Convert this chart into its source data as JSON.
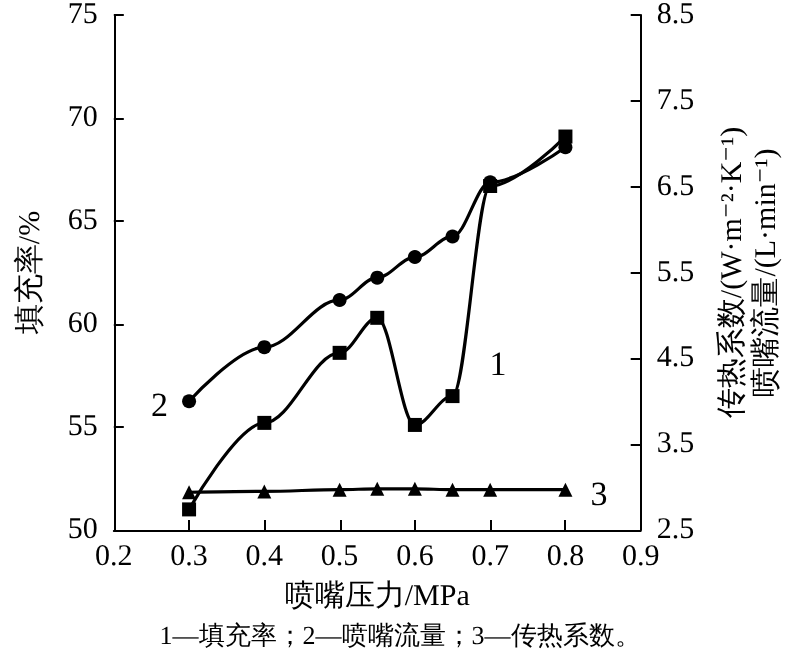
{
  "chart_data": {
    "type": "line",
    "xlabel": "喷嘴压力/MPa",
    "ylabel": "填充率/%",
    "y2label": "传热系数/(W·m⁻²·K⁻¹)\n喷嘴流量/(L·min⁻¹)",
    "x": [
      0.3,
      0.4,
      0.5,
      0.55,
      0.6,
      0.65,
      0.7,
      0.8
    ],
    "series": [
      {
        "name": "1",
        "color": "#000000",
        "marker": "square",
        "values": [
          51.0,
          55.2,
          58.6,
          60.3,
          55.1,
          56.5,
          66.7,
          69.1
        ]
      },
      {
        "name": "2",
        "color": "#000000",
        "marker": "circle",
        "axis": "y2",
        "values": [
          4.0,
          4.63,
          5.18,
          5.44,
          5.68,
          5.92,
          6.55,
          6.96
        ]
      },
      {
        "name": "3",
        "color": "#000000",
        "marker": "triangle",
        "axis": "y2",
        "values": [
          2.94,
          2.95,
          2.97,
          2.98,
          2.98,
          2.97,
          2.97,
          2.97
        ]
      }
    ],
    "xlim": [
      0.2,
      0.9
    ],
    "xticks": [
      0.2,
      0.3,
      0.4,
      0.5,
      0.6,
      0.7,
      0.8,
      0.9
    ],
    "ylim": [
      50,
      75
    ],
    "yticks": [
      50,
      55,
      60,
      65,
      70,
      75
    ],
    "y2lim": [
      2.5,
      8.5
    ],
    "y2ticks": [
      2.5,
      3.5,
      4.5,
      5.5,
      6.5,
      7.5,
      8.5
    ],
    "grid": false,
    "legend": false,
    "annotations": [
      "1—填充率；2—喷嘴流量；3—传热系数。"
    ]
  }
}
